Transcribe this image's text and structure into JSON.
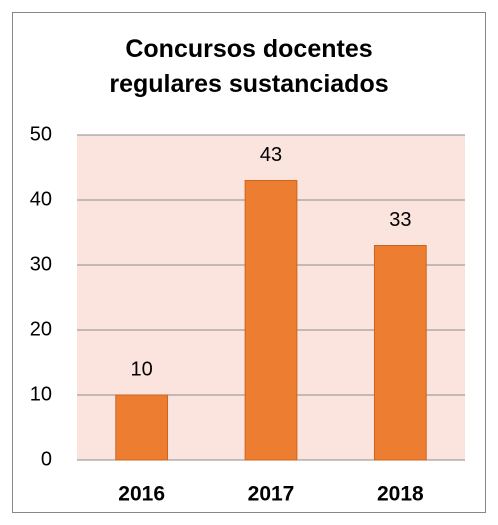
{
  "chart_data": {
    "type": "bar",
    "title": "Concursos docentes regulares sustanciados",
    "categories": [
      "2016",
      "2017",
      "2018"
    ],
    "values": [
      10,
      43,
      33
    ],
    "color": "#ed7d31",
    "ylim": [
      0,
      50
    ],
    "yticks": [
      0,
      10,
      20,
      30,
      40,
      50
    ],
    "grid": true
  }
}
